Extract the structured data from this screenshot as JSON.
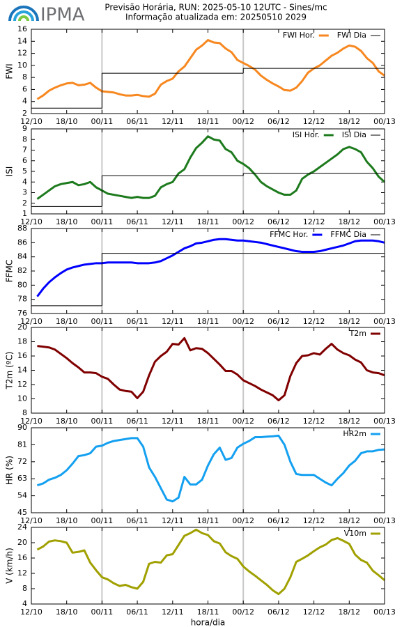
{
  "header": {
    "logo": "IPMA",
    "title": "Previsão Horária, RUN: 2025-05-10 12UTC - Sines/mc",
    "subtitle": "Informação atualizada em: 20250510 2029"
  },
  "shared_x": {
    "x": [
      1,
      2,
      3,
      4,
      5,
      6,
      7,
      8,
      9,
      10,
      11,
      12,
      13,
      14,
      15,
      16,
      17,
      18,
      19,
      20,
      21,
      22,
      23,
      24,
      25,
      26,
      27,
      28,
      29,
      30,
      31,
      32,
      33,
      34,
      35,
      36,
      37,
      38,
      39,
      40,
      41,
      42,
      43,
      44,
      45,
      46,
      47,
      48,
      49,
      50,
      51,
      52,
      53,
      54,
      55,
      56,
      57,
      58,
      59,
      60
    ],
    "xlim": [
      0,
      60
    ],
    "xticks": [
      {
        "value": 0,
        "label": "12/10"
      },
      {
        "value": 6,
        "label": "18/10"
      },
      {
        "value": 12,
        "label": "00/11"
      },
      {
        "value": 18,
        "label": "06/11"
      },
      {
        "value": 24,
        "label": "12/11"
      },
      {
        "value": 30,
        "label": "18/11"
      },
      {
        "value": 36,
        "label": "00/12"
      },
      {
        "value": 42,
        "label": "06/12"
      },
      {
        "value": 48,
        "label": "12/12"
      },
      {
        "value": 54,
        "label": "18/12"
      },
      {
        "value": 60,
        "label": "00/13"
      }
    ],
    "day_lines": [
      12,
      36
    ],
    "xlabel": "hora/dia"
  },
  "chart_data": [
    {
      "type": "line",
      "ylabel": "FWI",
      "ylim": [
        2,
        16
      ],
      "yticks": [
        2,
        4,
        6,
        8,
        10,
        12,
        14,
        16
      ],
      "legend": "upper right",
      "series": [
        {
          "name": "FWI Hor.",
          "color": "#f7871f",
          "values": [
            4.4,
            5.0,
            5.8,
            6.3,
            6.7,
            7.0,
            7.1,
            6.7,
            6.8,
            7.1,
            6.3,
            5.7,
            5.6,
            5.5,
            5.2,
            5.0,
            5.0,
            5.1,
            4.9,
            4.8,
            5.3,
            6.8,
            7.4,
            7.8,
            9.0,
            9.8,
            11.2,
            12.6,
            13.3,
            14.2,
            13.8,
            13.7,
            12.8,
            12.2,
            10.9,
            10.4,
            9.9,
            9.3,
            8.3,
            7.6,
            7.0,
            6.5,
            5.9,
            5.8,
            6.3,
            7.4,
            8.8,
            9.5,
            10.0,
            10.8,
            11.6,
            12.1,
            12.8,
            13.3,
            13.1,
            12.4,
            11.2,
            10.4,
            9.0,
            8.3
          ]
        },
        {
          "name": "FWI Dia",
          "color": "#000000",
          "step": true,
          "x": [
            0,
            12,
            36
          ],
          "values": [
            2.9,
            8.7,
            9.5
          ]
        }
      ]
    },
    {
      "type": "line",
      "ylabel": "ISI",
      "ylim": [
        1,
        9
      ],
      "yticks": [
        1,
        2,
        3,
        4,
        5,
        6,
        7,
        8,
        9
      ],
      "legend": "upper right",
      "series": [
        {
          "name": "ISI Hor.",
          "color": "#1d7a1d",
          "values": [
            2.4,
            2.8,
            3.2,
            3.6,
            3.8,
            3.9,
            4.0,
            3.7,
            3.8,
            4.0,
            3.5,
            3.2,
            2.9,
            2.8,
            2.7,
            2.6,
            2.5,
            2.6,
            2.5,
            2.5,
            2.7,
            3.5,
            3.8,
            4.0,
            4.8,
            5.2,
            6.3,
            7.2,
            7.7,
            8.3,
            8.0,
            7.9,
            7.1,
            6.8,
            6.0,
            5.7,
            5.3,
            4.7,
            4.0,
            3.6,
            3.3,
            3.0,
            2.8,
            2.8,
            3.2,
            4.3,
            4.7,
            5.0,
            5.4,
            5.8,
            6.2,
            6.6,
            7.1,
            7.3,
            7.1,
            6.8,
            5.9,
            5.3,
            4.5,
            4.0
          ]
        },
        {
          "name": "ISI Dia",
          "color": "#000000",
          "step": true,
          "x": [
            0,
            12,
            36
          ],
          "values": [
            1.7,
            4.6,
            4.8
          ]
        }
      ]
    },
    {
      "type": "line",
      "ylabel": "FFMC",
      "ylim": [
        76,
        88
      ],
      "yticks": [
        76,
        78,
        80,
        82,
        84,
        86,
        88
      ],
      "legend": "upper right",
      "series": [
        {
          "name": "FFMC Hor.",
          "color": "#0000ff",
          "values": [
            78.4,
            79.5,
            80.4,
            81.1,
            81.7,
            82.2,
            82.5,
            82.7,
            82.9,
            83.0,
            83.1,
            83.1,
            83.2,
            83.2,
            83.2,
            83.2,
            83.2,
            83.1,
            83.1,
            83.1,
            83.2,
            83.4,
            83.8,
            84.2,
            84.7,
            85.2,
            85.5,
            85.9,
            86.0,
            86.2,
            86.4,
            86.5,
            86.5,
            86.4,
            86.3,
            86.3,
            86.2,
            86.1,
            86.0,
            85.8,
            85.6,
            85.4,
            85.2,
            85.0,
            84.8,
            84.7,
            84.7,
            84.7,
            84.8,
            85.0,
            85.2,
            85.4,
            85.6,
            85.9,
            86.2,
            86.3,
            86.3,
            86.3,
            86.2,
            86.0
          ]
        },
        {
          "name": "FFMC Dia",
          "color": "#000000",
          "step": true,
          "x": [
            0,
            12,
            36
          ],
          "values": [
            77.1,
            84.5,
            84.5
          ]
        }
      ]
    },
    {
      "type": "line",
      "ylabel": "T2m (ºC)",
      "ylim": [
        8,
        20
      ],
      "yticks": [
        8,
        10,
        12,
        14,
        16,
        18,
        20
      ],
      "legend": "upper right",
      "series": [
        {
          "name": "T2m",
          "color": "#800000",
          "values": [
            17.4,
            17.3,
            17.2,
            16.9,
            16.3,
            15.7,
            15.0,
            14.4,
            13.7,
            13.7,
            13.6,
            13.1,
            12.8,
            12.0,
            11.3,
            11.1,
            11.0,
            10.1,
            11.0,
            13.3,
            15.2,
            16.0,
            16.6,
            17.7,
            17.6,
            18.5,
            16.8,
            17.1,
            17.0,
            16.4,
            15.6,
            14.8,
            13.9,
            13.9,
            13.4,
            12.6,
            12.2,
            11.8,
            11.3,
            10.9,
            10.5,
            9.8,
            10.5,
            13.2,
            15.0,
            16.0,
            16.1,
            16.4,
            16.2,
            17.0,
            17.7,
            16.9,
            16.4,
            16.1,
            15.5,
            15.1,
            14.0,
            13.7,
            13.6,
            13.3
          ]
        }
      ]
    },
    {
      "type": "line",
      "ylabel": "HR (%)",
      "ylim": [
        45,
        90
      ],
      "yticks": [
        45,
        54,
        63,
        72,
        81,
        90
      ],
      "legend": "upper right",
      "series": [
        {
          "name": "HR2m",
          "color": "#14a0f0",
          "values": [
            59.5,
            60.5,
            62.5,
            63.5,
            65,
            67.5,
            71,
            75,
            75.5,
            76.5,
            80,
            80.5,
            82,
            83,
            83.5,
            84,
            84.5,
            84.5,
            80,
            69,
            64,
            58,
            52,
            51,
            53,
            64,
            60,
            60,
            62.5,
            70,
            76,
            79.5,
            73,
            74,
            79.5,
            81.5,
            83,
            85,
            85,
            85.3,
            85.5,
            85.8,
            81,
            72,
            65.5,
            65,
            65,
            65,
            63,
            61,
            59.5,
            63,
            66,
            70,
            72.5,
            76.5,
            77.5,
            77.5,
            78.3,
            78.5
          ]
        }
      ]
    },
    {
      "type": "line",
      "ylabel": "V (km/h)",
      "ylim": [
        4,
        24
      ],
      "yticks": [
        4,
        8,
        12,
        16,
        20,
        24
      ],
      "legend": "upper right",
      "series": [
        {
          "name": "V10m",
          "color": "#a0a000",
          "values": [
            18.2,
            19,
            20.3,
            20.6,
            20.4,
            20,
            17.4,
            17.6,
            18,
            14.8,
            12.8,
            11,
            10.4,
            9.4,
            8.7,
            9,
            8.4,
            8.0,
            9.8,
            14.5,
            15,
            14.8,
            16.7,
            17,
            19.4,
            21.8,
            22.5,
            23.4,
            22.5,
            22,
            20.4,
            19.8,
            17.5,
            16.5,
            15.8,
            13.8,
            12.5,
            11.4,
            10.2,
            9,
            7.6,
            6.6,
            8,
            11,
            15,
            15.8,
            16.7,
            17.8,
            18.8,
            19.5,
            20.7,
            21.2,
            20.5,
            19.7,
            16.9,
            15.5,
            14.8,
            12.7,
            11.5,
            10.2
          ]
        }
      ]
    }
  ]
}
